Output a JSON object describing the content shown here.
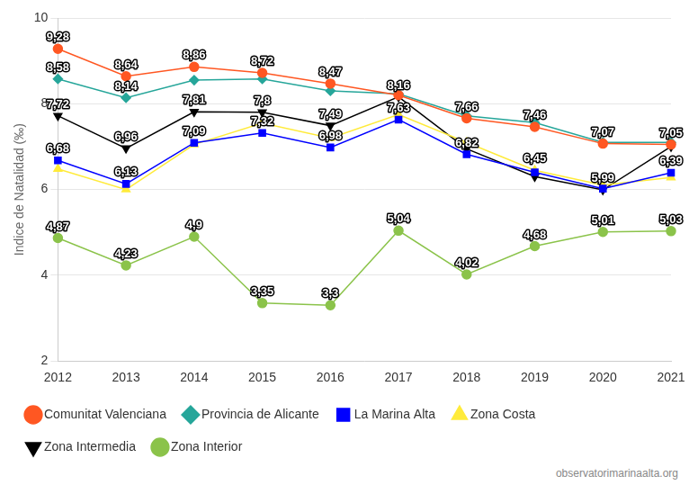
{
  "chart_data": {
    "type": "line",
    "y_label": "Indice de Natalidad (‰)",
    "source": "observatorimarinaalta.org",
    "categories": [
      "2012",
      "2013",
      "2014",
      "2015",
      "2016",
      "2017",
      "2018",
      "2019",
      "2020",
      "2021"
    ],
    "ylim": [
      2,
      10
    ],
    "yticks": [
      2,
      4,
      6,
      8,
      10
    ],
    "grid": true,
    "legend": "bottom",
    "data_labels": true,
    "series": [
      {
        "name": "Comunitat Valenciana",
        "color": "#ff5722",
        "marker": "circle",
        "values": [
          9.28,
          8.64,
          8.86,
          8.72,
          8.47,
          8.2,
          7.66,
          7.46,
          7.07,
          7.05
        ],
        "value_labels": [
          "9,28",
          "8,64",
          "8,86",
          "8,72",
          "8,47",
          null,
          "7,66",
          "7,46",
          "7,07",
          "7,05"
        ]
      },
      {
        "name": "Provincia de Alicante",
        "color": "#26a69a",
        "marker": "diamond",
        "values": [
          8.58,
          8.14,
          8.55,
          8.58,
          8.3,
          8.23,
          7.72,
          7.56,
          7.1,
          7.1
        ],
        "value_labels": [
          "8,58",
          "8,14",
          null,
          null,
          null,
          null,
          null,
          null,
          null,
          null
        ]
      },
      {
        "name": "La Marina Alta",
        "color": "#0000ff",
        "marker": "square",
        "values": [
          6.68,
          6.13,
          7.09,
          7.32,
          6.98,
          7.63,
          6.82,
          6.4,
          6.02,
          6.39
        ],
        "value_labels": [
          "6,68",
          "6,13",
          "7,09",
          "7,32",
          "6,98",
          "7,63",
          "6,82",
          null,
          null,
          "6,39"
        ]
      },
      {
        "name": "Zona Costa",
        "color": "#ffeb3b",
        "marker": "triangle",
        "values": [
          6.48,
          6.0,
          7.05,
          7.55,
          7.2,
          7.75,
          7.1,
          6.45,
          6.1,
          6.28
        ],
        "value_labels": [
          null,
          null,
          null,
          null,
          null,
          null,
          null,
          "6,45",
          null,
          null
        ]
      },
      {
        "name": "Zona Intermedia",
        "color": "#000000",
        "marker": "triangle-down",
        "values": [
          7.72,
          6.96,
          7.81,
          7.8,
          7.49,
          8.16,
          6.95,
          6.3,
          5.99,
          7.0
        ],
        "value_labels": [
          "7,72",
          "6,96",
          "7,81",
          "7,8",
          "7,49",
          "8,16",
          null,
          null,
          "5,99",
          null
        ]
      },
      {
        "name": "Zona Interior",
        "color": "#8bc34a",
        "marker": "circle",
        "values": [
          4.87,
          4.23,
          4.9,
          3.35,
          3.3,
          5.04,
          4.02,
          4.68,
          5.01,
          5.03
        ],
        "value_labels": [
          "4,87",
          "4,23",
          "4,9",
          "3,35",
          "3,3",
          "5,04",
          "4,02",
          "4,68",
          "5,01",
          "5,03"
        ]
      }
    ]
  }
}
